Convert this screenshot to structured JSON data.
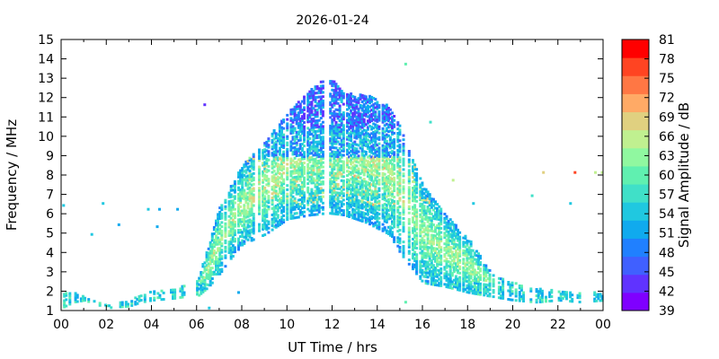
{
  "chart_data": {
    "type": "heatmap",
    "title": "2026-01-24",
    "xlabel": "UT Time / hrs",
    "ylabel": "Frequency / MHz",
    "xlim": [
      0,
      24
    ],
    "ylim": [
      1,
      15
    ],
    "x_ticks": [
      "00",
      "02",
      "04",
      "06",
      "08",
      "10",
      "12",
      "14",
      "16",
      "18",
      "20",
      "22",
      "00"
    ],
    "y_ticks": [
      "1",
      "2",
      "3",
      "4",
      "5",
      "6",
      "7",
      "8",
      "9",
      "10",
      "11",
      "12",
      "13",
      "14",
      "15"
    ],
    "colorbar": {
      "label": "Signal Amplitude / dB",
      "min": 39,
      "max": 81,
      "ticks": [
        "39",
        "42",
        "45",
        "48",
        "51",
        "54",
        "57",
        "60",
        "63",
        "66",
        "69",
        "72",
        "75",
        "78",
        "81"
      ],
      "colors": [
        "#7f00ff",
        "#6033ff",
        "#4060ff",
        "#2080ff",
        "#10aaee",
        "#20c8e0",
        "#40e0c8",
        "#60f0b0",
        "#90f8a0",
        "#c0f090",
        "#e0d080",
        "#ffaa66",
        "#ff7744",
        "#ff4422",
        "#ff0000"
      ]
    },
    "profile_points": [
      {
        "t": 0.0,
        "lo": 1.2,
        "hi": 2.0
      },
      {
        "t": 0.5,
        "lo": 1.5,
        "hi": 2.0
      },
      {
        "t": 1.0,
        "lo": 1.6,
        "hi": 1.8
      },
      {
        "t": 2.0,
        "lo": 1.2,
        "hi": 1.4
      },
      {
        "t": 3.0,
        "lo": 1.3,
        "hi": 1.6
      },
      {
        "t": 3.5,
        "lo": 1.5,
        "hi": 1.9
      },
      {
        "t": 4.0,
        "lo": 1.6,
        "hi": 2.1
      },
      {
        "t": 5.0,
        "lo": 1.7,
        "hi": 2.2
      },
      {
        "t": 5.5,
        "lo": 1.8,
        "hi": 2.4
      },
      {
        "t": 6.0,
        "lo": 1.8,
        "hi": 2.6
      },
      {
        "t": 6.5,
        "lo": 2.3,
        "hi": 4.5
      },
      {
        "t": 7.0,
        "lo": 3.0,
        "hi": 6.5
      },
      {
        "t": 7.5,
        "lo": 3.8,
        "hi": 7.6
      },
      {
        "t": 8.0,
        "lo": 4.5,
        "hi": 8.6
      },
      {
        "t": 9.0,
        "lo": 5.0,
        "hi": 9.8
      },
      {
        "t": 10.0,
        "lo": 5.8,
        "hi": 11.3
      },
      {
        "t": 11.0,
        "lo": 6.0,
        "hi": 12.5
      },
      {
        "t": 11.8,
        "lo": 6.1,
        "hi": 13.2
      },
      {
        "t": 12.5,
        "lo": 6.0,
        "hi": 12.3
      },
      {
        "t": 13.5,
        "lo": 5.6,
        "hi": 12.2
      },
      {
        "t": 14.5,
        "lo": 5.0,
        "hi": 11.6
      },
      {
        "t": 15.0,
        "lo": 4.0,
        "hi": 10.5
      },
      {
        "t": 16.0,
        "lo": 2.5,
        "hi": 7.5
      },
      {
        "t": 17.0,
        "lo": 2.3,
        "hi": 6.0
      },
      {
        "t": 18.0,
        "lo": 2.0,
        "hi": 4.8
      },
      {
        "t": 19.0,
        "lo": 1.8,
        "hi": 3.0
      },
      {
        "t": 20.0,
        "lo": 1.6,
        "hi": 2.5
      },
      {
        "t": 21.0,
        "lo": 1.5,
        "hi": 2.2
      },
      {
        "t": 22.0,
        "lo": 1.6,
        "hi": 2.1
      },
      {
        "t": 23.0,
        "lo": 1.5,
        "hi": 2.0
      },
      {
        "t": 24.0,
        "lo": 1.6,
        "hi": 2.0
      }
    ],
    "isolated_points": [
      {
        "t": 0.05,
        "f": 6.5,
        "v": 54
      },
      {
        "t": 1.3,
        "f": 5.0,
        "v": 54
      },
      {
        "t": 1.8,
        "f": 6.6,
        "v": 54
      },
      {
        "t": 2.5,
        "f": 5.5,
        "v": 51
      },
      {
        "t": 3.8,
        "f": 6.3,
        "v": 54
      },
      {
        "t": 4.3,
        "f": 6.3,
        "v": 51
      },
      {
        "t": 4.2,
        "f": 5.4,
        "v": 51
      },
      {
        "t": 5.1,
        "f": 6.3,
        "v": 51
      },
      {
        "t": 6.3,
        "f": 11.7,
        "v": 42
      },
      {
        "t": 6.5,
        "f": 1.2,
        "v": 54
      },
      {
        "t": 7.8,
        "f": 2.0,
        "v": 51
      },
      {
        "t": 15.2,
        "f": 13.8,
        "v": 60
      },
      {
        "t": 15.2,
        "f": 1.5,
        "v": 60
      },
      {
        "t": 16.3,
        "f": 10.8,
        "v": 57
      },
      {
        "t": 17.3,
        "f": 7.8,
        "v": 66
      },
      {
        "t": 18.2,
        "f": 6.6,
        "v": 54
      },
      {
        "t": 20.8,
        "f": 7.0,
        "v": 57
      },
      {
        "t": 21.3,
        "f": 8.2,
        "v": 69
      },
      {
        "t": 22.5,
        "f": 6.6,
        "v": 54
      },
      {
        "t": 22.7,
        "f": 8.2,
        "v": 78
      },
      {
        "t": 23.6,
        "f": 8.2,
        "v": 66
      },
      {
        "t": 23.9,
        "f": 8.2,
        "v": 66
      }
    ],
    "grid": false,
    "legend": "colorbar-right"
  }
}
